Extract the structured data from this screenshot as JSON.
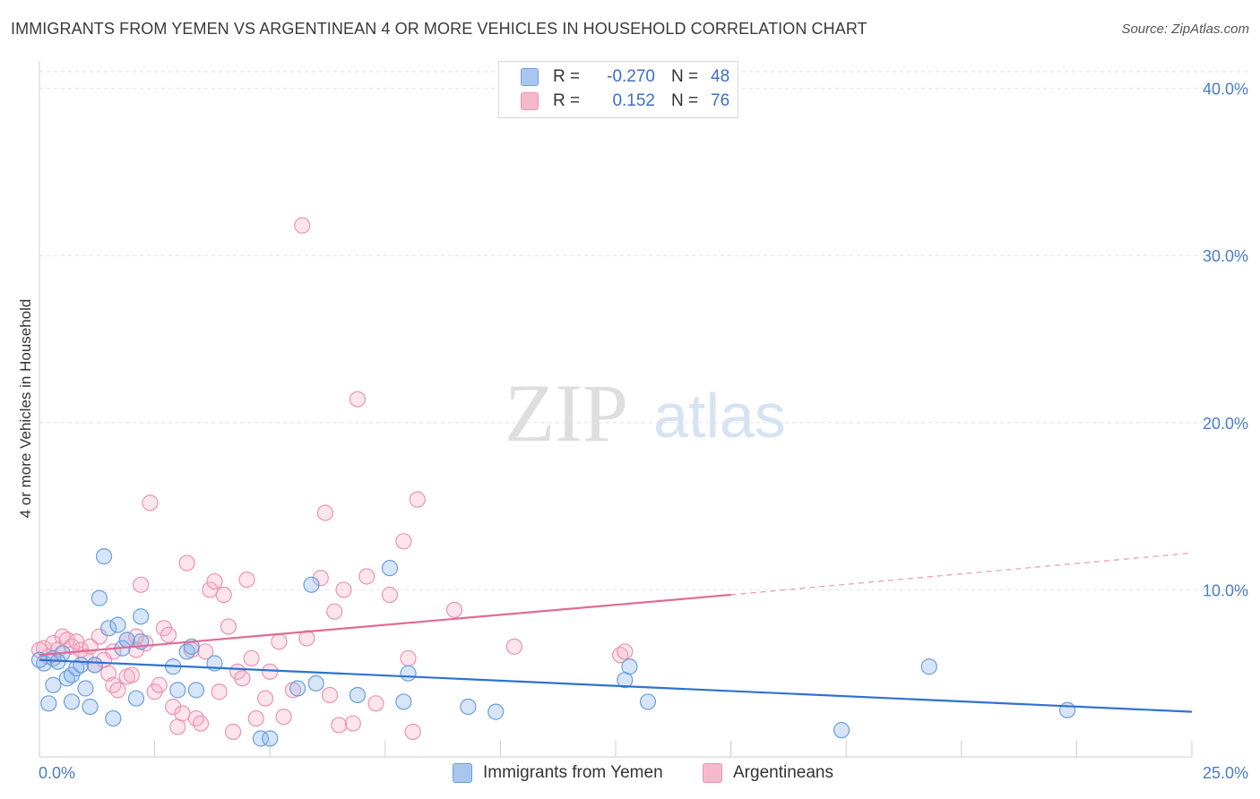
{
  "header": {
    "title": "IMMIGRANTS FROM YEMEN VS ARGENTINEAN 4 OR MORE VEHICLES IN HOUSEHOLD CORRELATION CHART",
    "source": "Source: ZipAtlas.com"
  },
  "watermark": {
    "zip": "ZIP",
    "atlas": "atlas"
  },
  "legend": {
    "r_label": "R =",
    "n_label": "N =",
    "rows": [
      {
        "r": "-0.270",
        "n": "48",
        "swatch": "#a9c7ee"
      },
      {
        "r": "0.152",
        "n": "76",
        "swatch": "#f6b9cc"
      }
    ]
  },
  "colors": {
    "blue": "#6a9fde",
    "blue_fill": "rgba(140,180,235,0.35)",
    "blue_line": "#2f72cf",
    "pink": "#ec93b0",
    "pink_fill": "rgba(245,170,195,0.30)",
    "pink_line": "#e06b95",
    "tick": "#4a7cc7",
    "grid": "#e2e2e2"
  },
  "chart_data": {
    "type": "scatter",
    "title": "IMMIGRANTS FROM YEMEN VS ARGENTINEAN 4 OR MORE VEHICLES IN HOUSEHOLD CORRELATION CHART",
    "xlabel": "",
    "ylabel": "4 or more Vehicles in Household",
    "xlim": [
      0,
      25
    ],
    "ylim": [
      0,
      41
    ],
    "x_tick_labels": [
      "0.0%",
      "25.0%"
    ],
    "y_ticks": [
      10,
      20,
      30,
      40
    ],
    "y_tick_labels": [
      "10.0%",
      "20.0%",
      "30.0%",
      "40.0%"
    ],
    "grid": true,
    "series": [
      {
        "name": "Immigrants from Yemen",
        "r": -0.27,
        "n": 48,
        "trend": {
          "x0": 0,
          "y0": 5.8,
          "x1": 25,
          "y1": 2.7
        },
        "points": [
          [
            0.1,
            5.6
          ],
          [
            0.2,
            3.2
          ],
          [
            0.3,
            5.9
          ],
          [
            0.5,
            6.2
          ],
          [
            0.3,
            4.3
          ],
          [
            0.6,
            4.7
          ],
          [
            0.7,
            4.9
          ],
          [
            0.8,
            5.3
          ],
          [
            0.9,
            5.5
          ],
          [
            1.0,
            4.1
          ],
          [
            1.1,
            3.0
          ],
          [
            1.3,
            9.5
          ],
          [
            1.4,
            12.0
          ],
          [
            1.5,
            7.7
          ],
          [
            1.6,
            2.3
          ],
          [
            1.7,
            7.9
          ],
          [
            1.8,
            6.5
          ],
          [
            1.9,
            7.0
          ],
          [
            2.1,
            3.5
          ],
          [
            2.2,
            6.9
          ],
          [
            2.2,
            8.4
          ],
          [
            2.9,
            5.4
          ],
          [
            3.0,
            4.0
          ],
          [
            3.2,
            6.3
          ],
          [
            3.3,
            6.6
          ],
          [
            3.4,
            4.0
          ],
          [
            3.8,
            5.6
          ],
          [
            0.7,
            3.3
          ],
          [
            4.8,
            1.1
          ],
          [
            5.0,
            1.1
          ],
          [
            5.6,
            4.1
          ],
          [
            5.9,
            10.3
          ],
          [
            6.0,
            4.4
          ],
          [
            6.9,
            3.7
          ],
          [
            7.6,
            11.3
          ],
          [
            7.9,
            3.3
          ],
          [
            8.0,
            5.0
          ],
          [
            9.3,
            3.0
          ],
          [
            9.9,
            2.7
          ],
          [
            12.7,
            4.6
          ],
          [
            12.8,
            5.4
          ],
          [
            13.2,
            3.3
          ],
          [
            17.4,
            1.6
          ],
          [
            19.3,
            5.4
          ],
          [
            22.3,
            2.8
          ],
          [
            0.0,
            5.8
          ],
          [
            0.4,
            5.7
          ],
          [
            1.2,
            5.5
          ]
        ]
      },
      {
        "name": "Argentineans",
        "r": 0.152,
        "n": 76,
        "trend": {
          "x0": 0,
          "y0": 6.1,
          "x1": 15,
          "y1": 9.7
        },
        "trend_extension": {
          "x0": 15,
          "y0": 9.7,
          "x1": 25,
          "y1": 12.2
        },
        "points": [
          [
            0.1,
            6.5
          ],
          [
            0.2,
            6.0
          ],
          [
            0.3,
            6.8
          ],
          [
            0.4,
            6.4
          ],
          [
            0.5,
            7.2
          ],
          [
            0.6,
            7.0
          ],
          [
            0.7,
            6.6
          ],
          [
            0.8,
            6.9
          ],
          [
            0.9,
            6.4
          ],
          [
            1.0,
            6.0
          ],
          [
            1.1,
            6.6
          ],
          [
            1.2,
            5.5
          ],
          [
            1.3,
            7.2
          ],
          [
            1.4,
            5.8
          ],
          [
            1.5,
            5.0
          ],
          [
            1.6,
            6.3
          ],
          [
            1.6,
            4.3
          ],
          [
            1.7,
            4.0
          ],
          [
            1.9,
            7.0
          ],
          [
            1.9,
            4.8
          ],
          [
            2.0,
            4.9
          ],
          [
            2.1,
            7.2
          ],
          [
            2.1,
            6.4
          ],
          [
            2.2,
            10.3
          ],
          [
            2.3,
            6.8
          ],
          [
            2.4,
            15.2
          ],
          [
            2.5,
            3.9
          ],
          [
            2.6,
            4.3
          ],
          [
            2.7,
            7.7
          ],
          [
            2.8,
            7.3
          ],
          [
            2.9,
            3.0
          ],
          [
            3.0,
            1.8
          ],
          [
            3.1,
            2.6
          ],
          [
            3.2,
            11.6
          ],
          [
            3.3,
            6.4
          ],
          [
            3.4,
            2.3
          ],
          [
            3.5,
            2.0
          ],
          [
            3.6,
            6.3
          ],
          [
            3.7,
            10.0
          ],
          [
            3.8,
            10.5
          ],
          [
            3.9,
            3.9
          ],
          [
            4.0,
            9.7
          ],
          [
            4.1,
            7.8
          ],
          [
            4.2,
            1.5
          ],
          [
            4.3,
            5.1
          ],
          [
            4.4,
            4.7
          ],
          [
            4.5,
            10.6
          ],
          [
            4.6,
            5.9
          ],
          [
            4.7,
            2.3
          ],
          [
            4.9,
            3.5
          ],
          [
            5.0,
            5.1
          ],
          [
            5.2,
            6.9
          ],
          [
            5.3,
            2.4
          ],
          [
            5.5,
            4.0
          ],
          [
            5.7,
            31.8
          ],
          [
            5.8,
            7.1
          ],
          [
            6.1,
            10.7
          ],
          [
            6.2,
            14.6
          ],
          [
            6.3,
            3.7
          ],
          [
            6.4,
            8.7
          ],
          [
            6.5,
            1.9
          ],
          [
            6.6,
            10.0
          ],
          [
            6.8,
            2.0
          ],
          [
            6.9,
            21.4
          ],
          [
            7.1,
            10.8
          ],
          [
            7.3,
            3.2
          ],
          [
            7.6,
            9.7
          ],
          [
            7.9,
            12.9
          ],
          [
            8.0,
            5.9
          ],
          [
            8.1,
            1.5
          ],
          [
            8.2,
            15.4
          ],
          [
            9.0,
            8.8
          ],
          [
            10.3,
            6.6
          ],
          [
            12.6,
            6.1
          ],
          [
            12.7,
            6.3
          ],
          [
            0.0,
            6.4
          ]
        ]
      }
    ]
  },
  "bottom_legend": [
    {
      "label": "Immigrants from Yemen",
      "swatch": "#a9c7ee"
    },
    {
      "label": "Argentineans",
      "swatch": "#f6b9cc"
    }
  ]
}
